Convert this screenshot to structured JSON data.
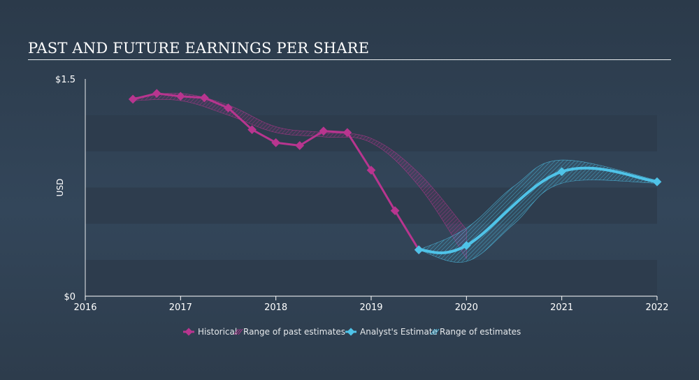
{
  "title": "PAST AND FUTURE EARNINGS PER SHARE",
  "colors": {
    "historical": "#b8358f",
    "estimate": "#4fc3e8",
    "band": "#2e3c4c"
  },
  "chart_data": {
    "type": "line",
    "title": "PAST AND FUTURE EARNINGS PER SHARE",
    "ylabel": "USD",
    "xlabel": "",
    "xlim": [
      2016,
      2022
    ],
    "ylim": [
      0,
      1.5
    ],
    "y_tick_labels": [
      "$0",
      "$1.5"
    ],
    "x_ticks": [
      2016,
      2017,
      2018,
      2019,
      2020,
      2021,
      2022
    ],
    "x_tick_labels": [
      "2016",
      "2017",
      "2018",
      "2019",
      "2020",
      "2021",
      "2022"
    ],
    "series": [
      {
        "name": "Historical",
        "points": [
          [
            2016.5,
            1.36
          ],
          [
            2016.75,
            1.4
          ],
          [
            2017.0,
            1.38
          ],
          [
            2017.25,
            1.37
          ],
          [
            2017.5,
            1.3
          ],
          [
            2017.75,
            1.15
          ],
          [
            2018.0,
            1.06
          ],
          [
            2018.25,
            1.04
          ],
          [
            2018.5,
            1.14
          ],
          [
            2018.75,
            1.13
          ],
          [
            2019.0,
            0.87
          ],
          [
            2019.25,
            0.59
          ],
          [
            2019.5,
            0.32
          ]
        ]
      },
      {
        "name": "Range of past estimates",
        "upper": [
          [
            2016.5,
            1.37
          ],
          [
            2017.0,
            1.4
          ],
          [
            2017.5,
            1.32
          ],
          [
            2018.0,
            1.17
          ],
          [
            2018.5,
            1.13
          ],
          [
            2019.0,
            1.09
          ],
          [
            2019.5,
            0.85
          ],
          [
            2020.0,
            0.46
          ]
        ],
        "lower": [
          [
            2016.5,
            1.35
          ],
          [
            2017.0,
            1.35
          ],
          [
            2017.5,
            1.25
          ],
          [
            2018.0,
            1.13
          ],
          [
            2018.5,
            1.1
          ],
          [
            2019.0,
            1.06
          ],
          [
            2019.5,
            0.76
          ],
          [
            2020.0,
            0.26
          ]
        ]
      },
      {
        "name": "Analyst's Estimate",
        "points": [
          [
            2019.5,
            0.32
          ],
          [
            2020.0,
            0.35
          ],
          [
            2021.0,
            0.86
          ],
          [
            2022.0,
            0.79
          ]
        ]
      },
      {
        "name": "Range of estimates",
        "upper": [
          [
            2019.5,
            0.32
          ],
          [
            2020.0,
            0.47
          ],
          [
            2020.5,
            0.76
          ],
          [
            2021.0,
            0.94
          ],
          [
            2022.0,
            0.8
          ]
        ],
        "lower": [
          [
            2019.5,
            0.32
          ],
          [
            2020.0,
            0.24
          ],
          [
            2020.5,
            0.5
          ],
          [
            2021.0,
            0.78
          ],
          [
            2022.0,
            0.78
          ]
        ]
      }
    ],
    "legend": {
      "placement": "bottom-center",
      "items": [
        "Historical",
        "Range of past estimates",
        "Analyst's Estimate",
        "Range of estimates"
      ]
    }
  }
}
